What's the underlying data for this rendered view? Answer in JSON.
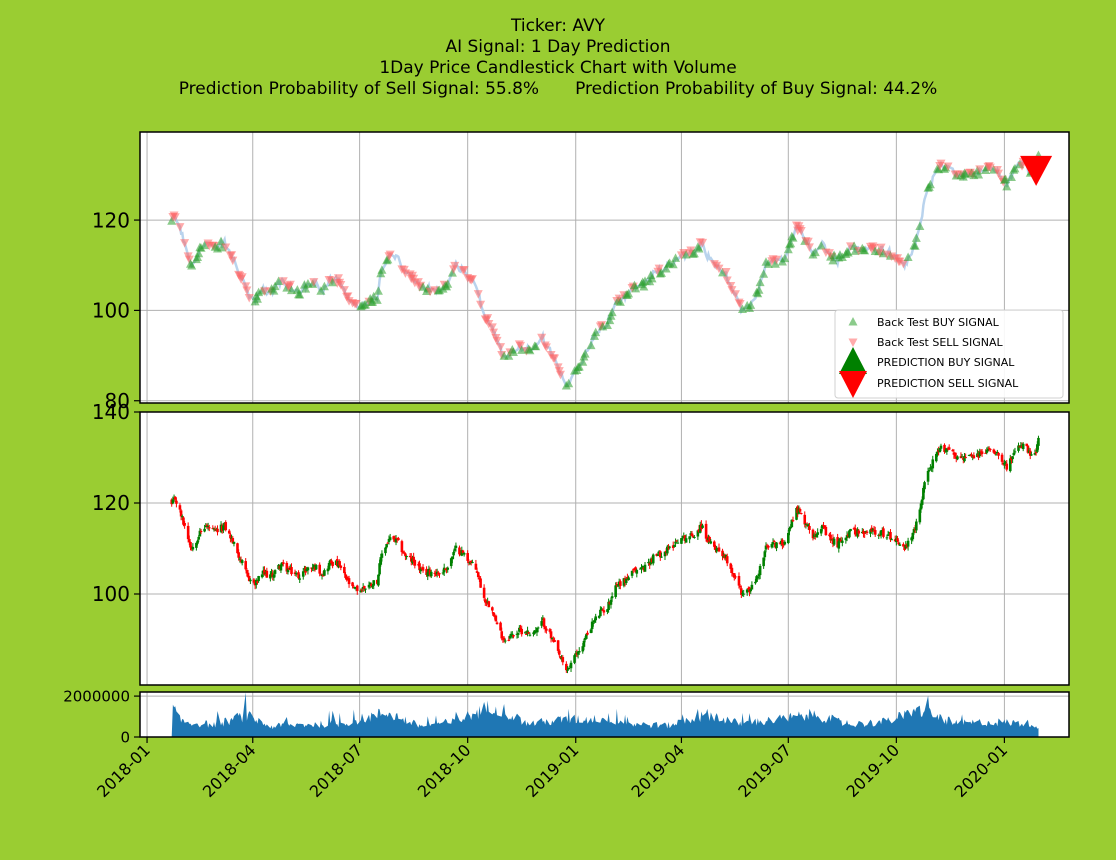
{
  "chart_data": {
    "type": "candlestick",
    "ticker_line": "Ticker: AVY",
    "signal_line": "AI Signal: 1 Day Prediction",
    "chart_line": "1Day Price Candlestick Chart with Volume",
    "sell_prob_text": "Prediction Probability of Sell Signal: 55.8%",
    "buy_prob_text": "Prediction Probability of Buy Signal: 44.2%",
    "x_tick_labels": [
      "2018-01",
      "2018-04",
      "2018-07",
      "2018-10",
      "2019-01",
      "2019-04",
      "2019-07",
      "2019-10",
      "2020-01"
    ],
    "x_tick_dates": [
      "2018-01-01",
      "2018-04-01",
      "2018-07-01",
      "2018-10-01",
      "2019-01-01",
      "2019-04-01",
      "2019-07-01",
      "2019-10-01",
      "2020-01-01"
    ],
    "x_range": [
      "2017-12-26",
      "2020-02-25"
    ],
    "grid": true,
    "panels": {
      "signals": {
        "ylim": [
          79.5,
          139.5
        ],
        "yticks": [
          80,
          100,
          120
        ],
        "yticklabels": [
          "80",
          "100",
          "120"
        ]
      },
      "candles": {
        "ylim": [
          80,
          140
        ],
        "yticks": [
          100,
          120,
          140
        ],
        "yticklabels": [
          "100",
          "120",
          "140"
        ]
      },
      "volume": {
        "ylim": [
          0,
          2200000
        ],
        "yticks": [
          0,
          2000000
        ],
        "yticklabels": [
          "0",
          "2000000"
        ]
      }
    },
    "legend": {
      "position": "lower-right",
      "entries": [
        "Back Test BUY SIGNAL",
        "Back Test SELL SIGNAL",
        "PREDICTION BUY SIGNAL",
        "PREDICTION SELL SIGNAL"
      ]
    },
    "prediction_sell_point": {
      "date": "2020-01-28",
      "price": 130.9
    },
    "colors": {
      "up": "#008000",
      "down": "#ff0000",
      "line": "#a8c8e8",
      "volume": "#1f77b4",
      "buy": "#2ca02c",
      "sell": "#ff6666",
      "background": "#9acd32"
    },
    "anchors": [
      [
        "2018-01-22",
        119.5
      ],
      [
        "2018-01-25",
        121
      ],
      [
        "2018-02-02",
        115
      ],
      [
        "2018-02-08",
        110
      ],
      [
        "2018-02-14",
        113
      ],
      [
        "2018-02-20",
        115
      ],
      [
        "2018-02-28",
        113.5
      ],
      [
        "2018-03-08",
        115
      ],
      [
        "2018-03-14",
        112
      ],
      [
        "2018-03-21",
        108
      ],
      [
        "2018-03-27",
        104
      ],
      [
        "2018-04-03",
        102
      ],
      [
        "2018-04-09",
        104.5
      ],
      [
        "2018-04-17",
        104
      ],
      [
        "2018-04-25",
        106.5
      ],
      [
        "2018-05-03",
        105
      ],
      [
        "2018-05-10",
        104
      ],
      [
        "2018-05-17",
        105.5
      ],
      [
        "2018-05-24",
        106
      ],
      [
        "2018-05-31",
        104.5
      ],
      [
        "2018-06-06",
        107
      ],
      [
        "2018-06-13",
        106.5
      ],
      [
        "2018-06-18",
        104
      ],
      [
        "2018-06-25",
        101
      ],
      [
        "2018-07-02",
        101
      ],
      [
        "2018-07-09",
        102
      ],
      [
        "2018-07-16",
        103
      ],
      [
        "2018-07-20",
        109
      ],
      [
        "2018-07-26",
        112
      ],
      [
        "2018-08-02",
        111.5
      ],
      [
        "2018-08-10",
        108
      ],
      [
        "2018-08-17",
        107
      ],
      [
        "2018-08-24",
        104.5
      ],
      [
        "2018-08-31",
        105
      ],
      [
        "2018-09-07",
        104.5
      ],
      [
        "2018-09-14",
        106
      ],
      [
        "2018-09-21",
        110
      ],
      [
        "2018-09-27",
        109
      ],
      [
        "2018-10-03",
        107
      ],
      [
        "2018-10-09",
        105
      ],
      [
        "2018-10-15",
        99
      ],
      [
        "2018-10-22",
        97
      ],
      [
        "2018-10-26",
        93
      ],
      [
        "2018-11-01",
        90
      ],
      [
        "2018-11-08",
        91
      ],
      [
        "2018-11-15",
        92
      ],
      [
        "2018-11-22",
        91.5
      ],
      [
        "2018-11-29",
        92
      ],
      [
        "2018-12-04",
        94
      ],
      [
        "2018-12-10",
        91
      ],
      [
        "2018-12-17",
        87
      ],
      [
        "2018-12-24",
        83
      ],
      [
        "2018-12-31",
        86
      ],
      [
        "2019-01-07",
        89
      ],
      [
        "2019-01-14",
        93
      ],
      [
        "2019-01-22",
        96
      ],
      [
        "2019-01-28",
        97
      ],
      [
        "2019-02-04",
        102
      ],
      [
        "2019-02-12",
        103
      ],
      [
        "2019-02-20",
        105
      ],
      [
        "2019-03-01",
        106
      ],
      [
        "2019-03-08",
        108
      ],
      [
        "2019-03-15",
        109
      ],
      [
        "2019-03-22",
        110
      ],
      [
        "2019-03-29",
        112
      ],
      [
        "2019-04-05",
        112.5
      ],
      [
        "2019-04-12",
        113
      ],
      [
        "2019-04-18",
        115
      ],
      [
        "2019-04-25",
        111
      ],
      [
        "2019-05-02",
        110
      ],
      [
        "2019-05-09",
        108
      ],
      [
        "2019-05-16",
        104
      ],
      [
        "2019-05-23",
        100
      ],
      [
        "2019-05-30",
        101
      ],
      [
        "2019-06-05",
        104
      ],
      [
        "2019-06-12",
        110
      ],
      [
        "2019-06-19",
        111
      ],
      [
        "2019-06-26",
        111
      ],
      [
        "2019-07-03",
        115
      ],
      [
        "2019-07-08",
        119
      ],
      [
        "2019-07-15",
        116
      ],
      [
        "2019-07-22",
        113
      ],
      [
        "2019-07-29",
        115
      ],
      [
        "2019-08-05",
        112
      ],
      [
        "2019-08-12",
        111
      ],
      [
        "2019-08-19",
        113
      ],
      [
        "2019-08-26",
        114
      ],
      [
        "2019-09-03",
        113
      ],
      [
        "2019-09-10",
        114
      ],
      [
        "2019-09-17",
        113.5
      ],
      [
        "2019-09-24",
        113
      ],
      [
        "2019-10-01",
        112
      ],
      [
        "2019-10-08",
        110
      ],
      [
        "2019-10-14",
        112
      ],
      [
        "2019-10-21",
        118
      ],
      [
        "2019-10-25",
        125
      ],
      [
        "2019-11-01",
        129
      ],
      [
        "2019-11-08",
        132
      ],
      [
        "2019-11-15",
        132
      ],
      [
        "2019-11-22",
        130
      ],
      [
        "2019-11-29",
        130
      ],
      [
        "2019-12-06",
        130
      ],
      [
        "2019-12-13",
        131
      ],
      [
        "2019-12-20",
        132
      ],
      [
        "2019-12-27",
        131
      ],
      [
        "2020-01-03",
        128
      ],
      [
        "2020-01-10",
        131
      ],
      [
        "2020-01-17",
        133
      ],
      [
        "2020-01-24",
        130
      ],
      [
        "2020-01-28",
        131
      ],
      [
        "2020-01-30",
        134
      ]
    ],
    "volume_anchors": [
      [
        "2018-01-22",
        0
      ],
      [
        "2018-01-23",
        1550000
      ],
      [
        "2018-01-28",
        900000
      ],
      [
        "2018-02-06",
        750000
      ],
      [
        "2018-03-01",
        650000
      ],
      [
        "2018-03-26",
        1150000
      ],
      [
        "2018-04-16",
        550000
      ],
      [
        "2018-05-10",
        650000
      ],
      [
        "2018-06-15",
        700000
      ],
      [
        "2018-07-25",
        1300000
      ],
      [
        "2018-08-20",
        600000
      ],
      [
        "2018-09-20",
        800000
      ],
      [
        "2018-10-24",
        1700000
      ],
      [
        "2018-11-20",
        700000
      ],
      [
        "2018-12-21",
        900000
      ],
      [
        "2019-01-29",
        1000000
      ],
      [
        "2019-02-15",
        700000
      ],
      [
        "2019-03-20",
        600000
      ],
      [
        "2019-04-25",
        1200000
      ],
      [
        "2019-05-20",
        700000
      ],
      [
        "2019-06-20",
        900000
      ],
      [
        "2019-07-24",
        1200000
      ],
      [
        "2019-08-20",
        650000
      ],
      [
        "2019-09-20",
        800000
      ],
      [
        "2019-10-23",
        1400000
      ],
      [
        "2019-11-20",
        700000
      ],
      [
        "2019-12-20",
        800000
      ],
      [
        "2020-01-28",
        700000
      ],
      [
        "2020-01-31",
        0
      ]
    ]
  }
}
